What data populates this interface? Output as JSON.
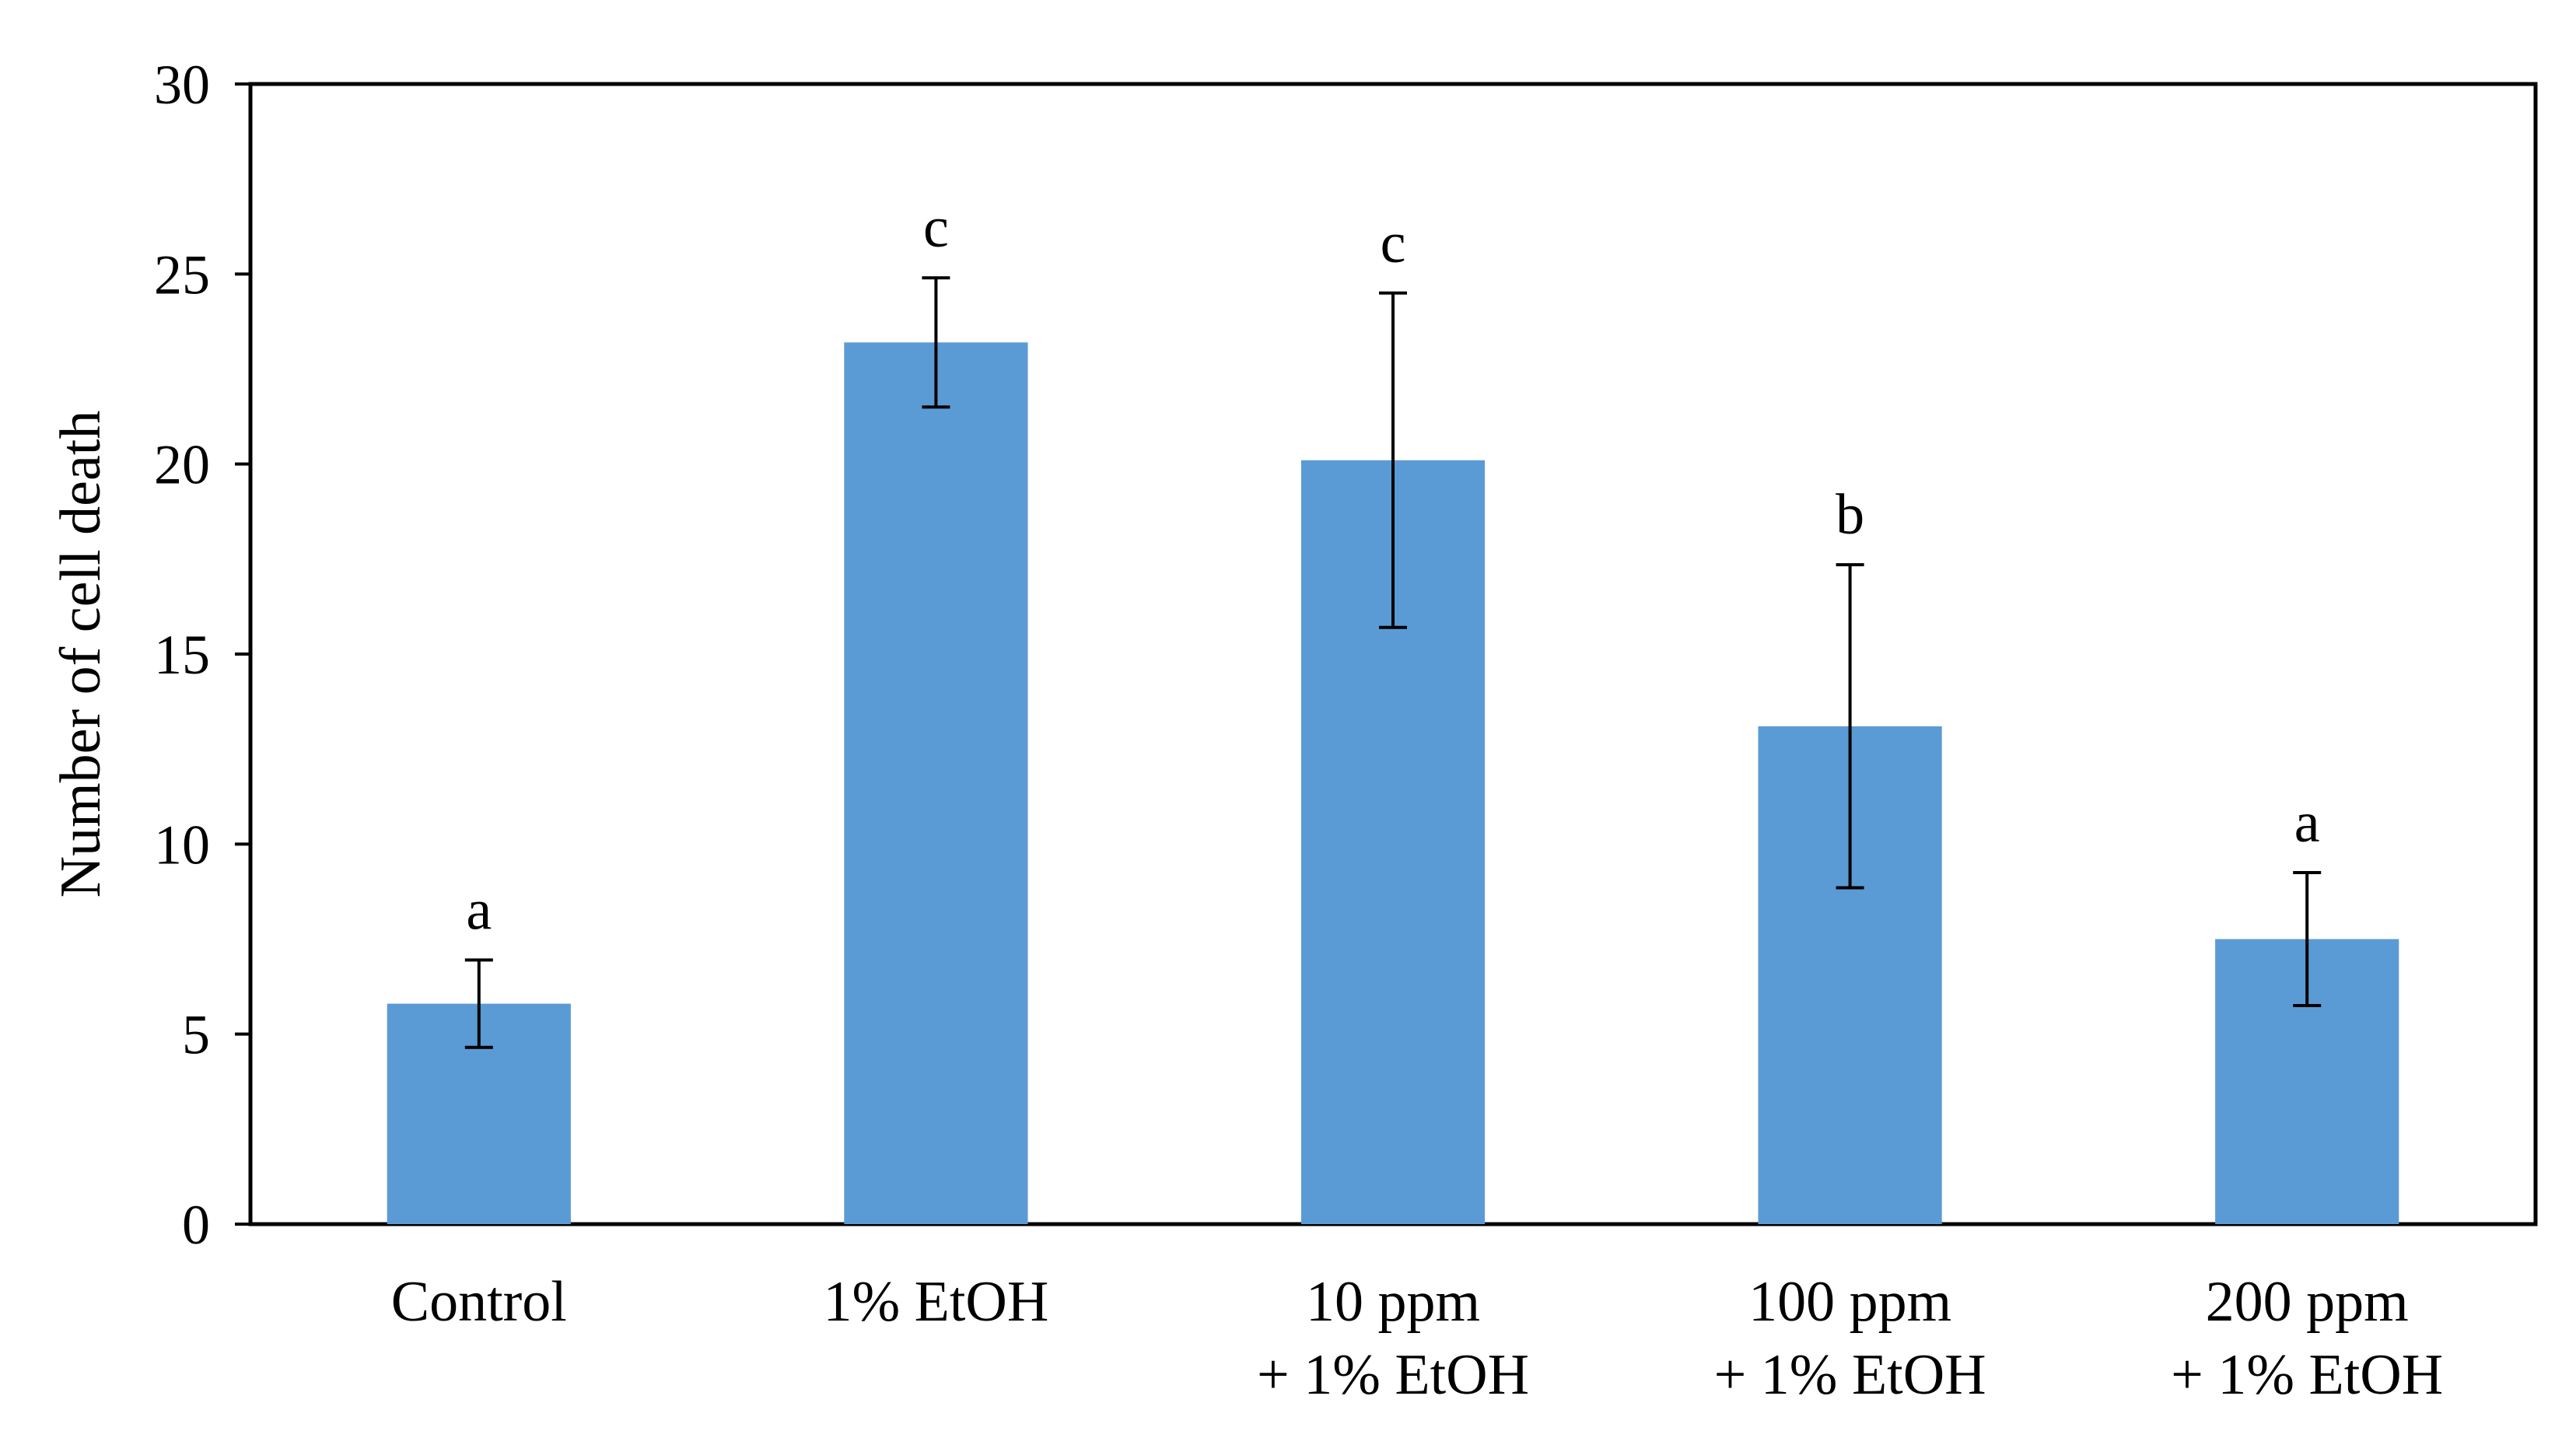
{
  "chart_data": {
    "type": "bar",
    "title": "",
    "xlabel": "",
    "ylabel": "Number of cell death",
    "ylim": [
      0,
      30
    ],
    "yticks": [
      0,
      5,
      10,
      15,
      20,
      25,
      30
    ],
    "ytick_labels": [
      "0",
      "5",
      "10",
      "15",
      "20",
      "25",
      "30"
    ],
    "categories": [
      {
        "line1": "Control",
        "line2": ""
      },
      {
        "line1": "1% EtOH",
        "line2": ""
      },
      {
        "line1": "10 ppm",
        "line2": "+ 1% EtOH"
      },
      {
        "line1": "100 ppm",
        "line2": "+ 1% EtOH"
      },
      {
        "line1": "200 ppm",
        "line2": "+ 1% EtOH"
      }
    ],
    "values": [
      5.8,
      23.2,
      20.1,
      13.1,
      7.5
    ],
    "errors": [
      1.15,
      1.7,
      4.4,
      4.25,
      1.75
    ],
    "significance_letters": [
      "a",
      "c",
      "c",
      "b",
      "a"
    ],
    "grid": false,
    "legend": "none",
    "colors": {
      "bar": "#5B9BD5",
      "axis": "#000000",
      "error": "#000000"
    }
  }
}
